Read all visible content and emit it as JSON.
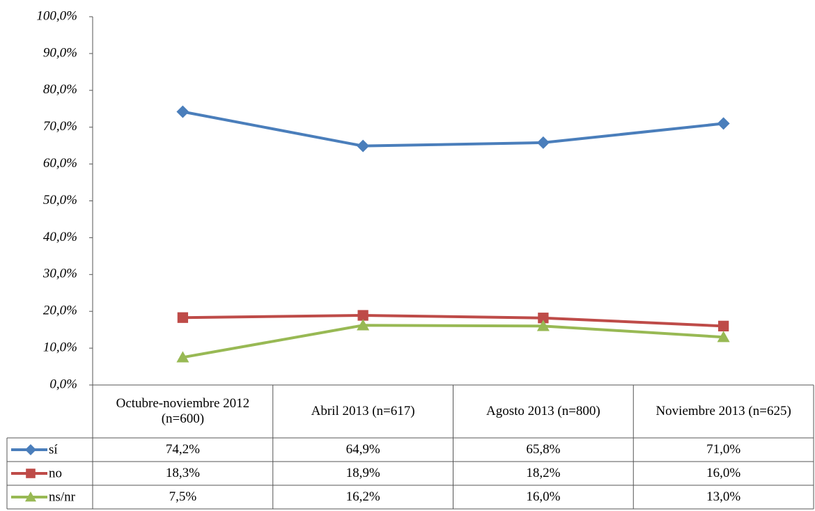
{
  "chart_data": {
    "type": "line",
    "categories": [
      "Octubre-noviembre 2012 (n=600)",
      "Abril 2013 (n=617)",
      "Agosto 2013 (n=800)",
      "Noviembre 2013 (n=625)"
    ],
    "series": [
      {
        "name": "sí",
        "color": "#4a7ebb",
        "marker": "diamond",
        "values": [
          74.2,
          64.9,
          65.8,
          71.0
        ],
        "value_labels": [
          "74,2%",
          "64,9%",
          "65,8%",
          "71,0%"
        ]
      },
      {
        "name": "no",
        "color": "#be4b48",
        "marker": "square",
        "values": [
          18.3,
          18.9,
          18.2,
          16.0
        ],
        "value_labels": [
          "18,3%",
          "18,9%",
          "18,2%",
          "16,0%"
        ]
      },
      {
        "name": "ns/nr",
        "color": "#98b954",
        "marker": "triangle",
        "values": [
          7.5,
          16.2,
          16.0,
          13.0
        ],
        "value_labels": [
          "7,5%",
          "16,2%",
          "16,0%",
          "13,0%"
        ]
      }
    ],
    "ylim": [
      0,
      100
    ],
    "yticks": [
      {
        "value": 0,
        "label": "0,0%"
      },
      {
        "value": 10,
        "label": "10,0%"
      },
      {
        "value": 20,
        "label": "20,0%"
      },
      {
        "value": 30,
        "label": "30,0%"
      },
      {
        "value": 40,
        "label": "40,0%"
      },
      {
        "value": 50,
        "label": "50,0%"
      },
      {
        "value": 60,
        "label": "60,0%"
      },
      {
        "value": 70,
        "label": "70,0%"
      },
      {
        "value": 80,
        "label": "80,0%"
      },
      {
        "value": 90,
        "label": "90,0%"
      },
      {
        "value": 100,
        "label": "100,0%"
      }
    ],
    "grid": false
  }
}
